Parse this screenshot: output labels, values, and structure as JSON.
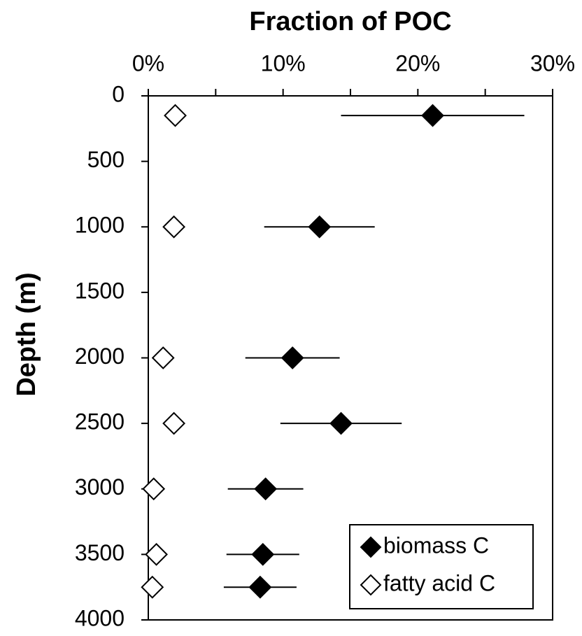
{
  "chart_data": {
    "type": "scatter",
    "title": "Fraction of POC",
    "y_label": "Depth (m)",
    "xlim": [
      0,
      30
    ],
    "xticks": [
      {
        "value": 0,
        "label": "0%"
      },
      {
        "value": 10,
        "label": "10%"
      },
      {
        "value": 20,
        "label": "20%"
      },
      {
        "value": 30,
        "label": "30%"
      }
    ],
    "xminorticks": [
      5,
      15,
      25
    ],
    "ylim": [
      0,
      4000
    ],
    "yticks": [
      0,
      500,
      1000,
      1500,
      2000,
      2500,
      3000,
      3500,
      4000
    ],
    "y_inverted": true,
    "x_axis_position": "top",
    "legend": "bottom-right",
    "series": [
      {
        "name": "biomass C",
        "color": "#000000",
        "x": [
          21.1,
          12.7,
          10.7,
          14.3,
          8.7,
          8.5,
          8.3
        ],
        "xerr": [
          6.8,
          4.1,
          3.5,
          4.5,
          2.8,
          2.7,
          2.7
        ],
        "y": [
          150,
          1000,
          2000,
          2500,
          3000,
          3500,
          3750
        ]
      },
      {
        "name": "fatty acid C",
        "color": "#ffffff",
        "x": [
          2.0,
          1.9,
          1.1,
          1.9,
          0.4,
          0.6,
          0.3
        ],
        "y": [
          150,
          1000,
          2000,
          2500,
          3000,
          3500,
          3750
        ]
      }
    ]
  }
}
